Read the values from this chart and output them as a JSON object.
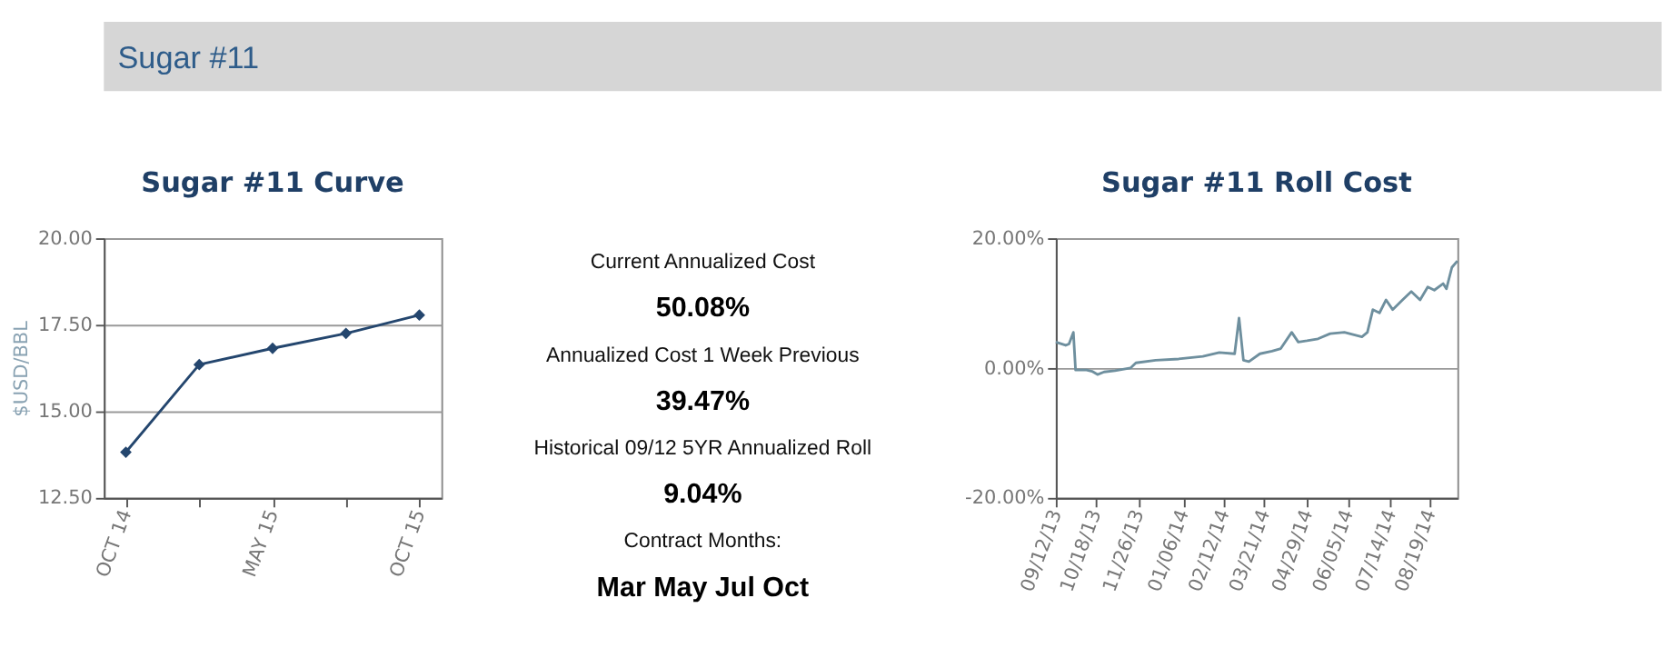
{
  "chart_data": [
    {
      "type": "line",
      "title": "Sugar #11 Curve",
      "ylabel": "$USD/BBL",
      "categories": [
        "OCT 14",
        null,
        "MAY 15",
        null,
        "OCT 15"
      ],
      "series": [
        {
          "color": "#24466e",
          "values": [
            13.82,
            16.35,
            16.82,
            17.25,
            17.78
          ]
        }
      ],
      "ylim": [
        12.5,
        20
      ],
      "yticks": [
        {
          "value": 12.5,
          "label": "12.50"
        },
        {
          "value": 15,
          "label": "15.00"
        },
        {
          "value": 17.5,
          "label": "17.50"
        },
        {
          "value": 20,
          "label": "20.00"
        }
      ],
      "grid": "y",
      "marker": "diamond"
    },
    {
      "type": "other",
      "title": "Sugar #11",
      "annotations": [
        "Current Annualized Cost",
        "50.08%",
        "Annualized Cost 1 Week Previous",
        "39.47%",
        "Historical 09/12 5YR Annualized Roll",
        "9.04%",
        "Contract Months:",
        "Mar May Jul Oct"
      ]
    },
    {
      "type": "line",
      "title": "Sugar #11 Roll Cost",
      "x": [
        "2013-09-12",
        "2013-09-21",
        "2013-09-24",
        "2013-09-28",
        "2013-09-30",
        "2013-10-10",
        "2013-10-15",
        "2013-10-20",
        "2013-10-26",
        "2013-11-05",
        "2013-11-19",
        "2013-11-24",
        "2013-12-12",
        "2014-01-02",
        "2014-01-24",
        "2014-02-08",
        "2014-02-22",
        "2014-02-26",
        "2014-03-02",
        "2014-03-07",
        "2014-03-17",
        "2014-03-28",
        "2014-04-05",
        "2014-04-15",
        "2014-04-21",
        "2014-04-29",
        "2014-05-09",
        "2014-05-20",
        "2014-06-02",
        "2014-06-18",
        "2014-06-23",
        "2014-06-28",
        "2014-07-04",
        "2014-07-10",
        "2014-07-16",
        "2014-07-25",
        "2014-08-02",
        "2014-08-10",
        "2014-08-17",
        "2014-08-23",
        "2014-08-31",
        "2014-09-03",
        "2014-09-08",
        "2014-09-13"
      ],
      "series": [
        {
          "color": "#6e8f9e",
          "values": [
            4.0,
            3.5,
            3.7,
            5.5,
            -0.3,
            -0.3,
            -0.5,
            -1.0,
            -0.6,
            -0.4,
            0.0,
            0.8,
            1.2,
            1.4,
            1.8,
            2.4,
            2.2,
            7.7,
            1.2,
            1.0,
            2.2,
            2.6,
            3.0,
            5.5,
            4.0,
            4.2,
            4.5,
            5.3,
            5.5,
            4.8,
            5.5,
            9.0,
            8.5,
            10.5,
            9.0,
            10.5,
            11.8,
            10.5,
            12.5,
            12.0,
            13.0,
            12.2,
            15.5,
            16.5
          ]
        }
      ],
      "xlim": [
        "2013-09-12",
        "2014-09-13"
      ],
      "xticks": [
        {
          "value": "2013-09-12",
          "label": "09/12/13"
        },
        {
          "value": "2013-10-18",
          "label": "10/18/13"
        },
        {
          "value": "2013-11-26",
          "label": "11/26/13"
        },
        {
          "value": "2014-01-06",
          "label": "01/06/14"
        },
        {
          "value": "2014-02-12",
          "label": "02/12/14"
        },
        {
          "value": "2014-03-21",
          "label": "03/21/14"
        },
        {
          "value": "2014-04-29",
          "label": "04/29/14"
        },
        {
          "value": "2014-06-05",
          "label": "06/05/14"
        },
        {
          "value": "2014-07-14",
          "label": "07/14/14"
        },
        {
          "value": "2014-08-19",
          "label": "08/19/14"
        }
      ],
      "ylim": [
        -20,
        20
      ],
      "yticks": [
        {
          "value": -20,
          "label": "-20.00%"
        },
        {
          "value": 0,
          "label": "0.00%"
        },
        {
          "value": 20,
          "label": "20.00%"
        }
      ],
      "grid": "y",
      "marker": "none"
    }
  ]
}
